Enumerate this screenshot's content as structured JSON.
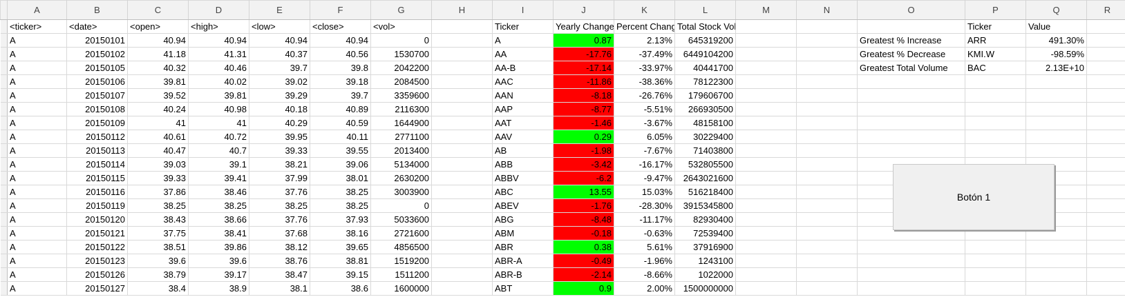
{
  "columns": [
    "",
    "A",
    "B",
    "C",
    "D",
    "E",
    "F",
    "G",
    "H",
    "I",
    "J",
    "K",
    "L",
    "M",
    "N",
    "O",
    "P",
    "Q",
    "R"
  ],
  "header_row": [
    "<ticker>",
    "<date>",
    "<open>",
    "<high>",
    "<low>",
    "<close>",
    "<vol>",
    "",
    "Ticker",
    "Yearly Change",
    "Percent Change",
    "Total Stock Volume",
    "",
    "",
    "",
    "Ticker",
    "Value",
    ""
  ],
  "rows": [
    [
      "A",
      "20150101",
      "40.94",
      "40.94",
      "40.94",
      "40.94",
      "0",
      "",
      "A",
      "0.87",
      "2.13%",
      "645319200",
      "",
      "",
      "Greatest % Increase",
      "ARR",
      "491.30%",
      ""
    ],
    [
      "A",
      "20150102",
      "41.18",
      "41.31",
      "40.37",
      "40.56",
      "1530700",
      "",
      "AA",
      "-17.76",
      "-37.49%",
      "6449104200",
      "",
      "",
      "Greatest % Decrease",
      "KMI.W",
      "-98.59%",
      ""
    ],
    [
      "A",
      "20150105",
      "40.32",
      "40.46",
      "39.7",
      "39.8",
      "2042200",
      "",
      "AA-B",
      "-17.14",
      "-33.97%",
      "40441700",
      "",
      "",
      "Greatest Total Volume",
      "BAC",
      "2.13E+10",
      ""
    ],
    [
      "A",
      "20150106",
      "39.81",
      "40.02",
      "39.02",
      "39.18",
      "2084500",
      "",
      "AAC",
      "-11.86",
      "-38.36%",
      "78122300",
      "",
      "",
      "",
      "",
      "",
      ""
    ],
    [
      "A",
      "20150107",
      "39.52",
      "39.81",
      "39.29",
      "39.7",
      "3359600",
      "",
      "AAN",
      "-8.18",
      "-26.76%",
      "179606700",
      "",
      "",
      "",
      "",
      "",
      ""
    ],
    [
      "A",
      "20150108",
      "40.24",
      "40.98",
      "40.18",
      "40.89",
      "2116300",
      "",
      "AAP",
      "-8.77",
      "-5.51%",
      "266930500",
      "",
      "",
      "",
      "",
      "",
      ""
    ],
    [
      "A",
      "20150109",
      "41",
      "41",
      "40.29",
      "40.59",
      "1644900",
      "",
      "AAT",
      "-1.46",
      "-3.67%",
      "48158100",
      "",
      "",
      "",
      "",
      "",
      ""
    ],
    [
      "A",
      "20150112",
      "40.61",
      "40.72",
      "39.95",
      "40.11",
      "2771100",
      "",
      "AAV",
      "0.29",
      "6.05%",
      "30229400",
      "",
      "",
      "",
      "",
      "",
      ""
    ],
    [
      "A",
      "20150113",
      "40.47",
      "40.7",
      "39.33",
      "39.55",
      "2013400",
      "",
      "AB",
      "-1.98",
      "-7.67%",
      "71403800",
      "",
      "",
      "",
      "",
      "",
      ""
    ],
    [
      "A",
      "20150114",
      "39.03",
      "39.1",
      "38.21",
      "39.06",
      "5134000",
      "",
      "ABB",
      "-3.42",
      "-16.17%",
      "532805500",
      "",
      "",
      "",
      "",
      "",
      ""
    ],
    [
      "A",
      "20150115",
      "39.33",
      "39.41",
      "37.99",
      "38.01",
      "2630200",
      "",
      "ABBV",
      "-6.2",
      "-9.47%",
      "2643021600",
      "",
      "",
      "",
      "",
      "",
      ""
    ],
    [
      "A",
      "20150116",
      "37.86",
      "38.46",
      "37.76",
      "38.25",
      "3003900",
      "",
      "ABC",
      "13.55",
      "15.03%",
      "516218400",
      "",
      "",
      "",
      "",
      "",
      ""
    ],
    [
      "A",
      "20150119",
      "38.25",
      "38.25",
      "38.25",
      "38.25",
      "0",
      "",
      "ABEV",
      "-1.76",
      "-28.30%",
      "3915345800",
      "",
      "",
      "",
      "",
      "",
      ""
    ],
    [
      "A",
      "20150120",
      "38.43",
      "38.66",
      "37.76",
      "37.93",
      "5033600",
      "",
      "ABG",
      "-8.48",
      "-11.17%",
      "82930400",
      "",
      "",
      "",
      "",
      "",
      ""
    ],
    [
      "A",
      "20150121",
      "37.75",
      "38.41",
      "37.68",
      "38.16",
      "2721600",
      "",
      "ABM",
      "-0.18",
      "-0.63%",
      "72539400",
      "",
      "",
      "",
      "",
      "",
      ""
    ],
    [
      "A",
      "20150122",
      "38.51",
      "39.86",
      "38.12",
      "39.65",
      "4856500",
      "",
      "ABR",
      "0.38",
      "5.61%",
      "37916900",
      "",
      "",
      "",
      "",
      "",
      ""
    ],
    [
      "A",
      "20150123",
      "39.6",
      "39.6",
      "38.76",
      "38.81",
      "1519200",
      "",
      "ABR-A",
      "-0.49",
      "-1.96%",
      "1243100",
      "",
      "",
      "",
      "",
      "",
      ""
    ],
    [
      "A",
      "20150126",
      "38.79",
      "39.17",
      "38.47",
      "39.15",
      "1511200",
      "",
      "ABR-B",
      "-2.14",
      "-8.66%",
      "1022000",
      "",
      "",
      "",
      "",
      "",
      ""
    ],
    [
      "A",
      "20150127",
      "38.4",
      "38.9",
      "38.1",
      "38.6",
      "1600000",
      "",
      "ABT",
      "0.9",
      "2.00%",
      "1500000000",
      "",
      "",
      "",
      "",
      "",
      ""
    ]
  ],
  "button": {
    "label": "Botón 1"
  },
  "colors": {
    "positive": "#00ff00",
    "negative": "#ff0000",
    "grid": "#d9d9d9",
    "header_bg": "#f2f2f2"
  }
}
